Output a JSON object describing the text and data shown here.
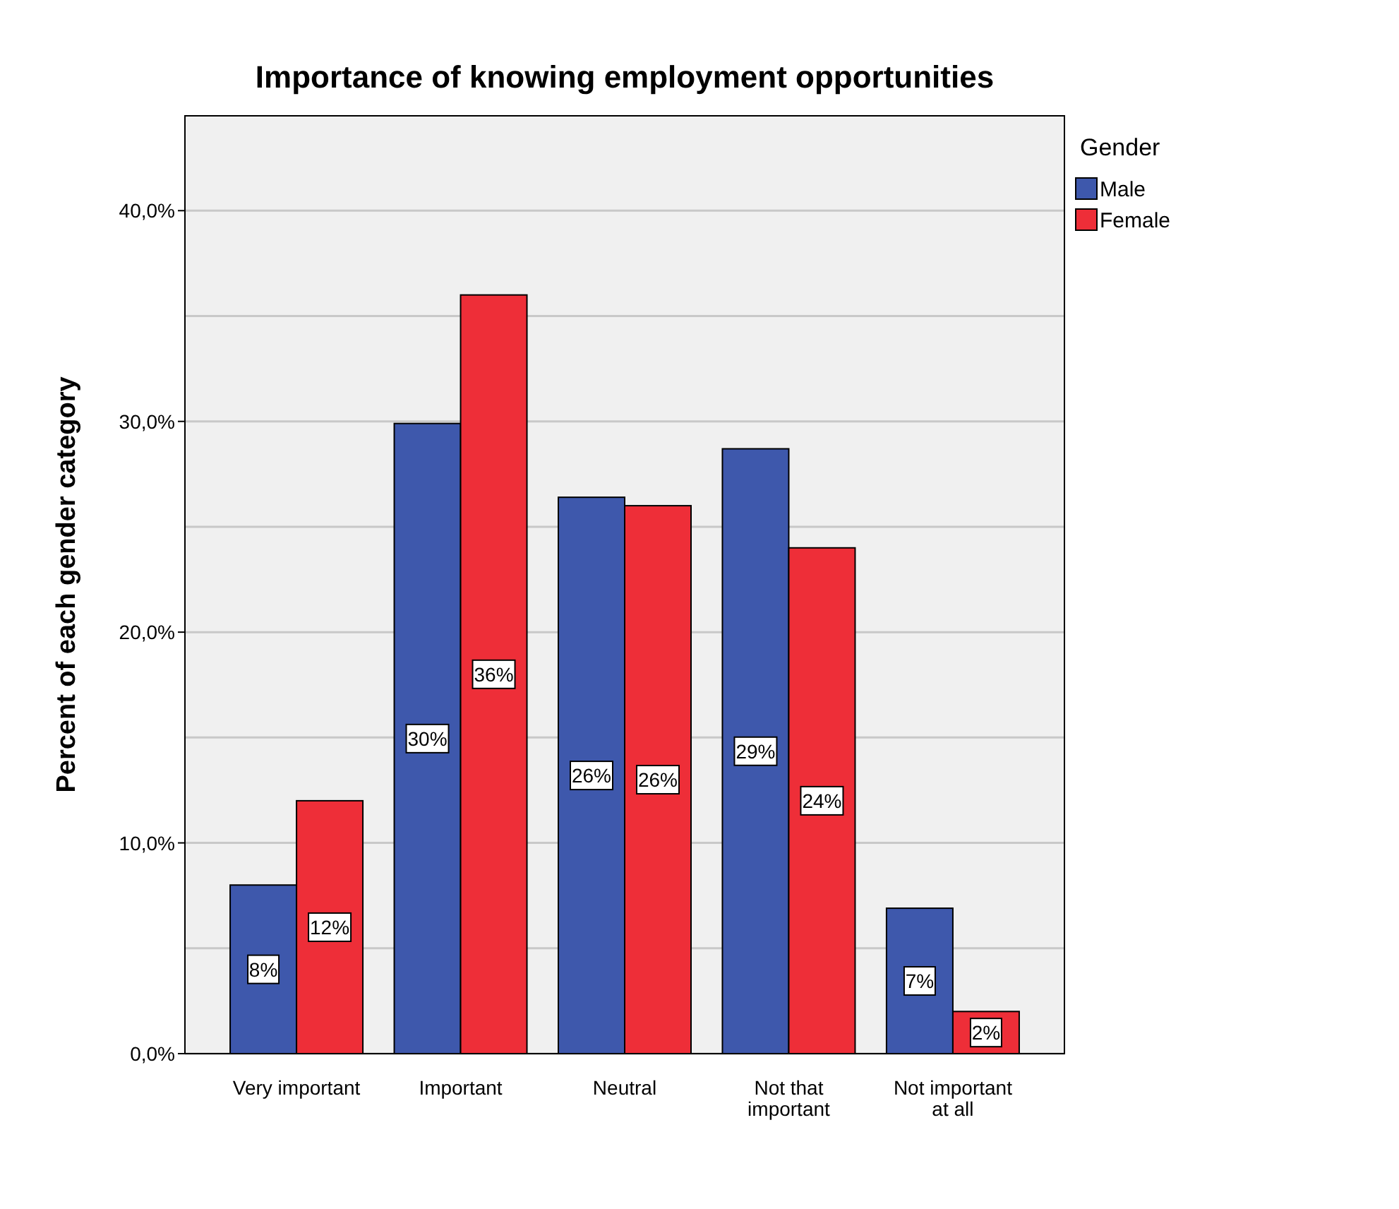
{
  "chart_data": {
    "type": "bar",
    "title": "Importance of knowing employment opportunities",
    "ylabel": "Percent of each gender category",
    "legend_title": "Gender",
    "legend": "top right",
    "grid": "y",
    "categories": [
      "Very important",
      "Important",
      "Neutral",
      "Not that important",
      "Not important at all"
    ],
    "series": [
      {
        "name": "Male",
        "color": "#3e58ac",
        "values": [
          8.0,
          29.9,
          26.4,
          28.7,
          6.9
        ],
        "value_labels": [
          "8%",
          "30%",
          "26%",
          "29%",
          "7%"
        ]
      },
      {
        "name": "Female",
        "color": "#ee2e38",
        "values": [
          12.0,
          36.0,
          26.0,
          24.0,
          2.0
        ],
        "value_labels": [
          "12%",
          "36%",
          "26%",
          "24%",
          "2%"
        ]
      }
    ],
    "ylim": [
      0,
      44.5
    ],
    "yticks": [
      {
        "value": 0,
        "label": "0,0%"
      },
      {
        "value": 5,
        "label": null
      },
      {
        "value": 10,
        "label": "10,0%"
      },
      {
        "value": 15,
        "label": null
      },
      {
        "value": 20,
        "label": "20,0%"
      },
      {
        "value": 25,
        "label": null
      },
      {
        "value": 30,
        "label": "30,0%"
      },
      {
        "value": 35,
        "label": null
      },
      {
        "value": 40,
        "label": "40,0%"
      }
    ]
  }
}
